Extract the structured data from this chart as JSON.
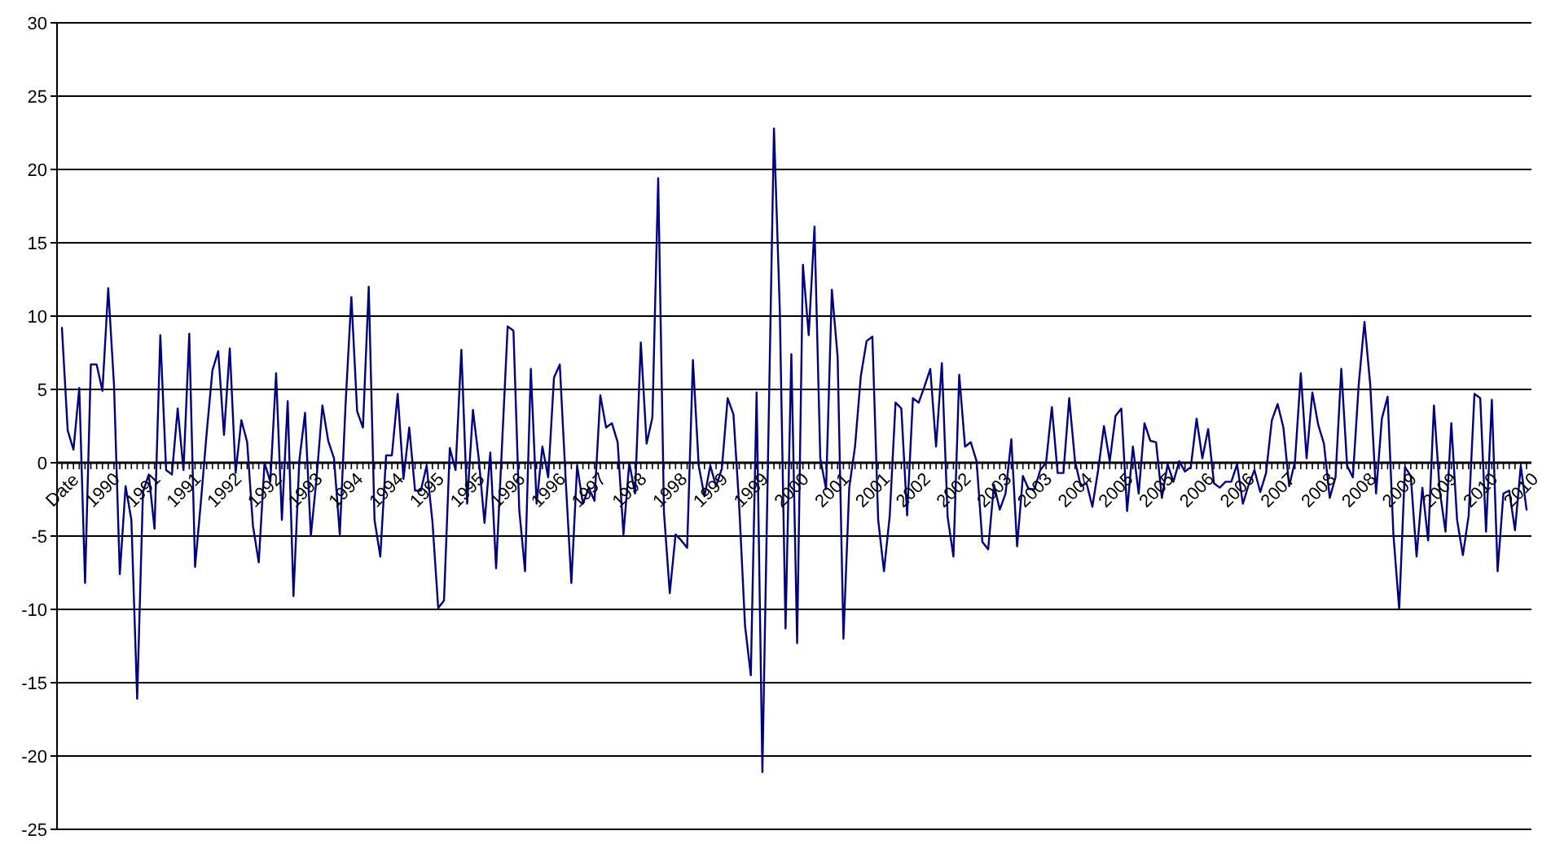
{
  "chart_data": {
    "type": "line",
    "categories": [
      "Date",
      null,
      null,
      null,
      null,
      null,
      null,
      "1990",
      null,
      null,
      null,
      null,
      null,
      null,
      "1991",
      null,
      null,
      null,
      null,
      null,
      null,
      "1991",
      null,
      null,
      null,
      null,
      null,
      null,
      "1992",
      null,
      null,
      null,
      null,
      null,
      null,
      "1992",
      null,
      null,
      null,
      null,
      null,
      null,
      "1993",
      null,
      null,
      null,
      null,
      null,
      null,
      "1994",
      null,
      null,
      null,
      null,
      null,
      null,
      "1994",
      null,
      null,
      null,
      null,
      null,
      null,
      "1995",
      null,
      null,
      null,
      null,
      null,
      null,
      "1995",
      null,
      null,
      null,
      null,
      null,
      null,
      "1996",
      null,
      null,
      null,
      null,
      null,
      null,
      "1996",
      null,
      null,
      null,
      null,
      null,
      null,
      "1997",
      null,
      null,
      null,
      null,
      null,
      null,
      "1998",
      null,
      null,
      null,
      null,
      null,
      null,
      "1998",
      null,
      null,
      null,
      null,
      null,
      null,
      "1999",
      null,
      null,
      null,
      null,
      null,
      null,
      "1999",
      null,
      null,
      null,
      null,
      null,
      null,
      "2000",
      null,
      null,
      null,
      null,
      null,
      null,
      "2001",
      null,
      null,
      null,
      null,
      null,
      null,
      "2001",
      null,
      null,
      null,
      null,
      null,
      null,
      "2002",
      null,
      null,
      null,
      null,
      null,
      null,
      "2002",
      null,
      null,
      null,
      null,
      null,
      null,
      "2003",
      null,
      null,
      null,
      null,
      null,
      null,
      "2003",
      null,
      null,
      null,
      null,
      null,
      null,
      "2004",
      null,
      null,
      null,
      null,
      null,
      null,
      "2005",
      null,
      null,
      null,
      null,
      null,
      null,
      "2005",
      null,
      null,
      null,
      null,
      null,
      null,
      "2006",
      null,
      null,
      null,
      null,
      null,
      null,
      "2006",
      null,
      null,
      null,
      null,
      null,
      null,
      "2007",
      null,
      null,
      null,
      null,
      null,
      null,
      "2008",
      null,
      null,
      null,
      null,
      null,
      null,
      "2008",
      null,
      null,
      null,
      null,
      null,
      null,
      "2009",
      null,
      null,
      null,
      null,
      null,
      null,
      "2009",
      null,
      null,
      null,
      null,
      null,
      null,
      "2010",
      null,
      null,
      null,
      null,
      null,
      null,
      "2010",
      null
    ],
    "values": [
      9.2,
      2.2,
      0.9,
      5.1,
      -8.2,
      6.7,
      6.7,
      4.9,
      11.9,
      5.3,
      -7.6,
      -1.6,
      -3.9,
      -16.1,
      -2,
      -0.8,
      -4.5,
      8.7,
      -0.5,
      -0.8,
      3.7,
      -0.5,
      8.8,
      -7.1,
      -2.7,
      2,
      6.3,
      7.6,
      1.9,
      7.8,
      -0.7,
      2.9,
      1.4,
      -4.3,
      -6.8,
      0,
      -1.3,
      6.1,
      -3.9,
      4.2,
      -9.1,
      0.1,
      3.4,
      -5,
      -1,
      3.9,
      1.5,
      0.3,
      -4.9,
      4,
      11.3,
      3.5,
      2.4,
      12,
      -3.9,
      -6.4,
      0.5,
      0.5,
      4.7,
      -1.1,
      2.4,
      -1.9,
      -1.9,
      -0.2,
      -4,
      -9.9,
      -9.4,
      1,
      -0.5,
      7.7,
      -2.8,
      3.6,
      0.3,
      -4.1,
      0.7,
      -7.2,
      1,
      9.3,
      9,
      -3.2,
      -7.4,
      6.4,
      -2.8,
      1.1,
      -1,
      5.8,
      6.7,
      -1,
      -8.2,
      -0.2,
      -2.8,
      -1.7,
      -2.6,
      4.6,
      2.4,
      2.7,
      1.4,
      -4.9,
      0,
      -2.1,
      8.2,
      1.3,
      3.1,
      19.4,
      -3.4,
      -8.9,
      -4.9,
      -5.3,
      -5.8,
      7,
      -0.2,
      -2.3,
      -0.2,
      -1.6,
      -0.4,
      4.4,
      3.3,
      -3,
      -11.1,
      -14.5,
      4.8,
      -21.1,
      1,
      22.8,
      10.5,
      -11.3,
      7.4,
      -12.3,
      13.5,
      8.7,
      16.1,
      0.3,
      -1.8,
      11.8,
      7.2,
      -12,
      -1.7,
      1.1,
      5.9,
      8.3,
      8.6,
      -3.9,
      -7.4,
      -3.6,
      4.1,
      3.7,
      -3.6,
      4.4,
      4.1,
      5.2,
      6.4,
      1.1,
      6.8,
      -3.7,
      -6.4,
      6,
      1.1,
      1.4,
      0.1,
      -5.4,
      -5.9,
      -1.5,
      -3.2,
      -2.1,
      1.6,
      -5.7,
      -0.9,
      -1.8,
      -1.8,
      -0.5,
      0,
      3.8,
      -0.7,
      -0.7,
      4.4,
      0.1,
      -1.6,
      -1.4,
      -3,
      -0.5,
      2.5,
      0.1,
      3.2,
      3.7,
      -3.3,
      1.1,
      -2.1,
      2.7,
      1.5,
      1.4,
      -2.4,
      -0.1,
      -1.3,
      0.1,
      -0.6,
      -0.3,
      3,
      0.3,
      2.3,
      -1.4,
      -1.7,
      -1.3,
      -1.3,
      -0.1,
      -2.8,
      -1.5,
      -0.5,
      -2,
      -0.7,
      2.9,
      4,
      2.4,
      -1.6,
      0.1,
      6.1,
      0.3,
      4.8,
      2.6,
      1.3,
      -2.4,
      -1,
      6.4,
      -0.2,
      -1,
      5.3,
      9.6,
      5.3,
      -2.1,
      3,
      4.5,
      -4.9,
      -10,
      -0.3,
      -0.9,
      -6.4,
      -1.7,
      -5.3,
      3.9,
      -1.9,
      -4.7,
      2.7,
      -3.9,
      -6.3,
      -3.6,
      4.7,
      4.4,
      -4.7,
      4.3,
      -7.4,
      -2.1,
      -1.9,
      -4.6,
      -0.2,
      -3.2
    ],
    "color": "#000080",
    "ylim": [
      -25,
      30
    ],
    "yticks": [
      -25,
      -20,
      -15,
      -10,
      -5,
      0,
      5,
      10,
      15,
      20,
      25,
      30
    ],
    "grid": "y"
  }
}
